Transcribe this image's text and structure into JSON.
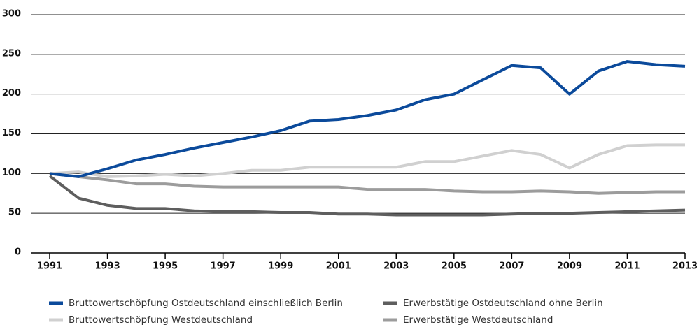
{
  "chart_data": {
    "type": "line",
    "x": [
      1991,
      1992,
      1993,
      1994,
      1995,
      1996,
      1997,
      1998,
      1999,
      2000,
      2001,
      2002,
      2003,
      2004,
      2005,
      2006,
      2007,
      2008,
      2009,
      2010,
      2011,
      2012,
      2013
    ],
    "series": [
      {
        "name": "Bruttowertschöpfung Ostdeutschland einschließlich Berlin",
        "color": "#0b4a9b",
        "values": [
          100,
          96,
          106,
          117,
          124,
          132,
          139,
          146,
          154,
          166,
          168,
          173,
          180,
          193,
          200,
          218,
          236,
          233,
          200,
          229,
          241,
          237,
          235
        ]
      },
      {
        "name": "Erwerbstätige Ostdeutschland ohne Berlin",
        "color": "#5e5e5e",
        "values": [
          97,
          69,
          60,
          56,
          56,
          53,
          52,
          52,
          51,
          51,
          49,
          49,
          48,
          48,
          48,
          48,
          49,
          50,
          50,
          51,
          52,
          53,
          54
        ]
      },
      {
        "name": "Bruttowertschöpfung Westdeutschland",
        "color": "#d0d0d0",
        "values": [
          100,
          102,
          96,
          97,
          99,
          97,
          100,
          104,
          104,
          108,
          108,
          108,
          108,
          115,
          115,
          122,
          129,
          124,
          107,
          124,
          135,
          136,
          136
        ]
      },
      {
        "name": "Erwerbstätige Westdeutschland",
        "color": "#9c9c9c",
        "values": [
          100,
          96,
          92,
          87,
          87,
          84,
          83,
          83,
          83,
          83,
          83,
          80,
          80,
          80,
          78,
          77,
          77,
          78,
          77,
          75,
          76,
          77,
          77
        ]
      }
    ],
    "xlim": [
      1991,
      2013
    ],
    "xticks": [
      1991,
      1993,
      1995,
      1997,
      1999,
      2001,
      2003,
      2005,
      2007,
      2009,
      2011,
      2013
    ],
    "ylim": [
      0,
      300
    ],
    "yticks": [
      0,
      50,
      100,
      150,
      200,
      250,
      300
    ],
    "grid": true
  }
}
